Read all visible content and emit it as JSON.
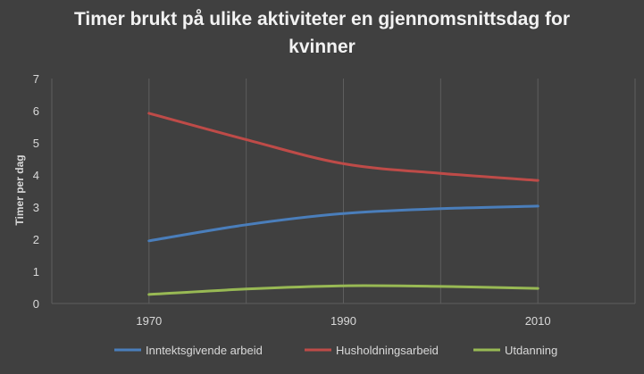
{
  "chart_data": {
    "type": "line",
    "title_lines": [
      "Timer brukt på ulike aktiviteter en gjennomsnittsdag for",
      "kvinner"
    ],
    "xlabel": "",
    "ylabel": "Timer per dag",
    "x": [
      "1970",
      "1990",
      "2010"
    ],
    "x_ticks": [
      "1970",
      "1990",
      "2010"
    ],
    "xlim": [
      1960,
      2020
    ],
    "ylim": [
      0,
      7
    ],
    "y_ticks": [
      0,
      1,
      2,
      3,
      4,
      5,
      6,
      7
    ],
    "grid": "vertical",
    "legend_position": "bottom",
    "series": [
      {
        "name": "Inntektsgivende arbeid",
        "color": "#4a7ebb",
        "x": [
          1970,
          1980,
          1990,
          2000,
          2010
        ],
        "values": [
          1.95,
          2.45,
          2.8,
          2.95,
          3.03
        ]
      },
      {
        "name": "Husholdningsarbeid",
        "color": "#be4b48",
        "x": [
          1970,
          1980,
          1990,
          2000,
          2010
        ],
        "values": [
          5.92,
          5.1,
          4.35,
          4.05,
          3.83
        ]
      },
      {
        "name": "Utdanning",
        "color": "#98b954",
        "x": [
          1970,
          1980,
          1990,
          2000,
          2010
        ],
        "values": [
          0.28,
          0.45,
          0.55,
          0.53,
          0.47
        ]
      }
    ]
  }
}
